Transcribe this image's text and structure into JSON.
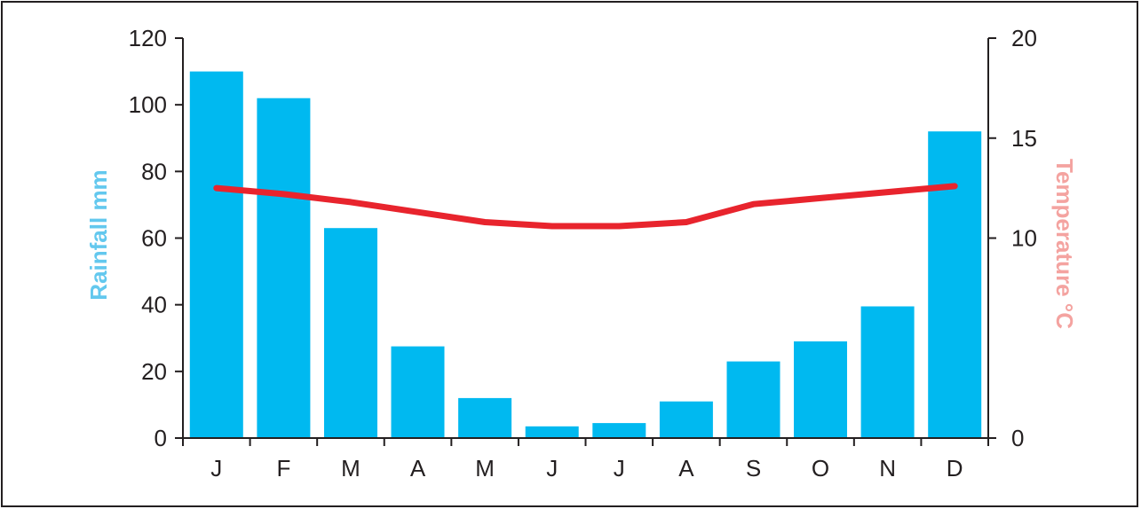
{
  "chart_data": {
    "type": "bar+line",
    "categories": [
      "J",
      "F",
      "M",
      "A",
      "M",
      "J",
      "J",
      "A",
      "S",
      "O",
      "N",
      "D"
    ],
    "series": [
      {
        "name": "Rainfall mm",
        "type": "bar",
        "axis": "left",
        "color": "#00b9f0",
        "values": [
          110,
          102,
          63,
          27.5,
          12,
          3.5,
          4.5,
          11,
          23,
          29,
          39.5,
          92
        ]
      },
      {
        "name": "Temperature °C",
        "type": "line",
        "axis": "right",
        "color": "#e8242d",
        "values": [
          12.5,
          12.2,
          11.8,
          11.3,
          10.8,
          10.6,
          10.6,
          10.8,
          11.7,
          12.0,
          12.3,
          12.6
        ]
      }
    ],
    "left_axis": {
      "label": "Rainfall mm",
      "label_color": "#63c8ee",
      "ylim": [
        0,
        120
      ],
      "ticks": [
        "0",
        "20",
        "40",
        "60",
        "80",
        "100",
        "120"
      ]
    },
    "right_axis": {
      "label": "Temperature °C",
      "label_color": "#f4a3a0",
      "ylim": [
        0,
        20
      ],
      "ticks": [
        "0",
        "10",
        "15",
        "20"
      ]
    },
    "title": "",
    "grid": false,
    "legend": "none"
  }
}
